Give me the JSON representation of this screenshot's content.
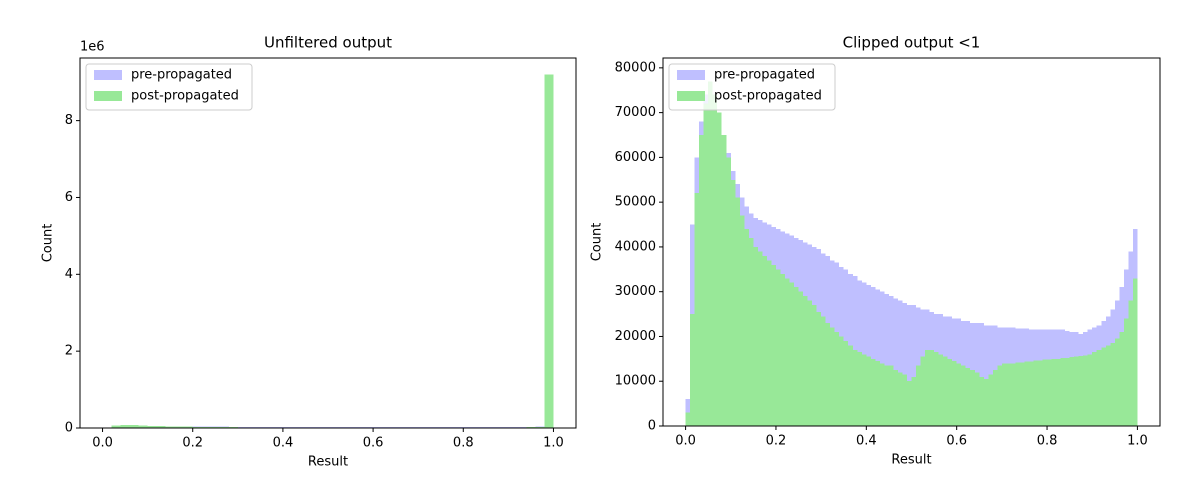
{
  "chart_data": [
    {
      "type": "histogram",
      "title": "Unfiltered output",
      "xlabel": "Result",
      "ylabel": "Count",
      "y_offset_text": "1e6",
      "xlim": [
        -0.05,
        1.05
      ],
      "ylim": [
        0,
        9630000
      ],
      "xticks": [
        {
          "value": 0,
          "label": "0.0"
        },
        {
          "value": 0.2,
          "label": "0.2"
        },
        {
          "value": 0.4,
          "label": "0.4"
        },
        {
          "value": 0.6,
          "label": "0.6"
        },
        {
          "value": 0.8,
          "label": "0.8"
        },
        {
          "value": 1,
          "label": "1.0"
        }
      ],
      "yticks": [
        {
          "value": 0,
          "label": "0"
        },
        {
          "value": 2000000,
          "label": "2"
        },
        {
          "value": 4000000,
          "label": "4"
        },
        {
          "value": 6000000,
          "label": "6"
        },
        {
          "value": 8000000,
          "label": "8"
        }
      ],
      "legend": "upper left",
      "bins": [
        0,
        0.02,
        0.04,
        0.06,
        0.08,
        0.1,
        0.12,
        0.14,
        0.16,
        0.18,
        0.2,
        0.22,
        0.24,
        0.26,
        0.28,
        0.3,
        0.32,
        0.34,
        0.36,
        0.38,
        0.4,
        0.42,
        0.44,
        0.46,
        0.48,
        0.5,
        0.52,
        0.54,
        0.56,
        0.58,
        0.6,
        0.62,
        0.64,
        0.66,
        0.68,
        0.7,
        0.72,
        0.74,
        0.76,
        0.78,
        0.8,
        0.82,
        0.84,
        0.86,
        0.88,
        0.9,
        0.92,
        0.94,
        0.96,
        0.98,
        1
      ],
      "series": [
        {
          "name": "pre-propagated",
          "color": "#bfbfff",
          "values": [
            10000,
            60000,
            70000,
            65000,
            55000,
            50000,
            45000,
            44000,
            43000,
            42000,
            40000,
            38000,
            36000,
            34000,
            32000,
            30000,
            29000,
            28000,
            27000,
            26000,
            25000,
            24000,
            24000,
            23000,
            23000,
            22000,
            22000,
            22000,
            22000,
            21000,
            21000,
            21000,
            21000,
            21000,
            21000,
            21000,
            21000,
            21000,
            21000,
            21000,
            21000,
            21000,
            21000,
            21000,
            22000,
            24000,
            27000,
            32000,
            40000,
            80000
          ]
        },
        {
          "name": "post-propagated",
          "color": "#98e898",
          "values": [
            8000,
            70000,
            80000,
            75000,
            65000,
            55000,
            50000,
            45000,
            40000,
            36000,
            32000,
            28000,
            25000,
            22000,
            20000,
            18000,
            17000,
            16000,
            15000,
            14000,
            14000,
            13000,
            12000,
            12000,
            11000,
            11000,
            12000,
            13000,
            12000,
            11000,
            11000,
            12000,
            13000,
            13000,
            14000,
            14000,
            14000,
            14000,
            14000,
            15000,
            15000,
            15000,
            15000,
            16000,
            16000,
            17000,
            18000,
            20000,
            25000,
            9200000
          ]
        }
      ]
    },
    {
      "type": "histogram",
      "title": "Clipped output <1",
      "xlabel": "Result",
      "ylabel": "Count",
      "xlim": [
        -0.05,
        1.05
      ],
      "ylim": [
        0,
        82200
      ],
      "xticks": [
        {
          "value": 0,
          "label": "0.0"
        },
        {
          "value": 0.2,
          "label": "0.2"
        },
        {
          "value": 0.4,
          "label": "0.4"
        },
        {
          "value": 0.6,
          "label": "0.6"
        },
        {
          "value": 0.8,
          "label": "0.8"
        },
        {
          "value": 1,
          "label": "1.0"
        }
      ],
      "yticks": [
        0,
        10000,
        20000,
        30000,
        40000,
        50000,
        60000,
        70000,
        80000
      ],
      "legend": "upper left",
      "bins": [
        0,
        0.01,
        0.02,
        0.03,
        0.04,
        0.05,
        0.06,
        0.07,
        0.08,
        0.09,
        0.1,
        0.11,
        0.12,
        0.13,
        0.14,
        0.15,
        0.16,
        0.17,
        0.18,
        0.19,
        0.2,
        0.21,
        0.22,
        0.23,
        0.24,
        0.25,
        0.26,
        0.27,
        0.28,
        0.29,
        0.3,
        0.31,
        0.32,
        0.33,
        0.34,
        0.35,
        0.36,
        0.37,
        0.38,
        0.39,
        0.4,
        0.41,
        0.42,
        0.43,
        0.44,
        0.45,
        0.46,
        0.47,
        0.48,
        0.49,
        0.5,
        0.51,
        0.52,
        0.53,
        0.54,
        0.55,
        0.56,
        0.57,
        0.58,
        0.59,
        0.6,
        0.61,
        0.62,
        0.63,
        0.64,
        0.65,
        0.66,
        0.67,
        0.68,
        0.69,
        0.7,
        0.71,
        0.72,
        0.73,
        0.74,
        0.75,
        0.76,
        0.77,
        0.78,
        0.79,
        0.8,
        0.81,
        0.82,
        0.83,
        0.84,
        0.85,
        0.86,
        0.87,
        0.88,
        0.89,
        0.9,
        0.91,
        0.92,
        0.93,
        0.94,
        0.95,
        0.96,
        0.97,
        0.98,
        0.99,
        1
      ],
      "series": [
        {
          "name": "pre-propagated",
          "color": "#bfbfff",
          "values": [
            6000,
            45000,
            60000,
            68000,
            74000,
            76000,
            74000,
            70000,
            65000,
            61000,
            57000,
            54000,
            51000,
            49000,
            47500,
            46500,
            46000,
            45500,
            45000,
            44500,
            44000,
            43500,
            43000,
            42500,
            42000,
            41500,
            41000,
            40500,
            40000,
            39500,
            38500,
            38000,
            37000,
            36500,
            35500,
            35000,
            34000,
            33500,
            32500,
            32000,
            31500,
            31000,
            30500,
            30000,
            29500,
            29000,
            28500,
            28000,
            27500,
            27000,
            27000,
            26500,
            26000,
            26000,
            25500,
            25000,
            25000,
            24500,
            24500,
            24000,
            24000,
            23500,
            23500,
            23000,
            23000,
            23000,
            22500,
            22500,
            22500,
            22000,
            22000,
            22000,
            22000,
            21800,
            21800,
            21800,
            21600,
            21600,
            21600,
            21500,
            21500,
            21500,
            21500,
            21500,
            21200,
            21000,
            21000,
            20500,
            21000,
            21500,
            22000,
            22500,
            23500,
            24500,
            26000,
            28000,
            31000,
            35000,
            39000,
            44000
          ]
        },
        {
          "name": "post-propagated",
          "color": "#98e898",
          "values": [
            3000,
            25000,
            52000,
            65000,
            72000,
            77000,
            74000,
            70000,
            65000,
            60000,
            55000,
            51000,
            47000,
            44000,
            42000,
            40000,
            39000,
            38000,
            37000,
            36000,
            35000,
            34000,
            33000,
            32000,
            31000,
            30000,
            29000,
            28000,
            27000,
            25500,
            24500,
            23000,
            22000,
            21000,
            20000,
            19000,
            18000,
            17000,
            16500,
            16000,
            15500,
            15000,
            14500,
            14000,
            13500,
            13500,
            12500,
            12000,
            11500,
            10000,
            11000,
            13500,
            15500,
            17000,
            17000,
            16500,
            16000,
            15500,
            15000,
            14500,
            14000,
            13500,
            13000,
            12500,
            12000,
            11000,
            10500,
            11500,
            12500,
            13500,
            14000,
            14000,
            14000,
            14200,
            14200,
            14400,
            14400,
            14600,
            14600,
            14800,
            14800,
            15000,
            15000,
            15200,
            15200,
            15400,
            15500,
            15600,
            15800,
            16000,
            16500,
            17000,
            17500,
            18000,
            18500,
            19500,
            21000,
            24000,
            28000,
            33000
          ]
        }
      ]
    }
  ]
}
